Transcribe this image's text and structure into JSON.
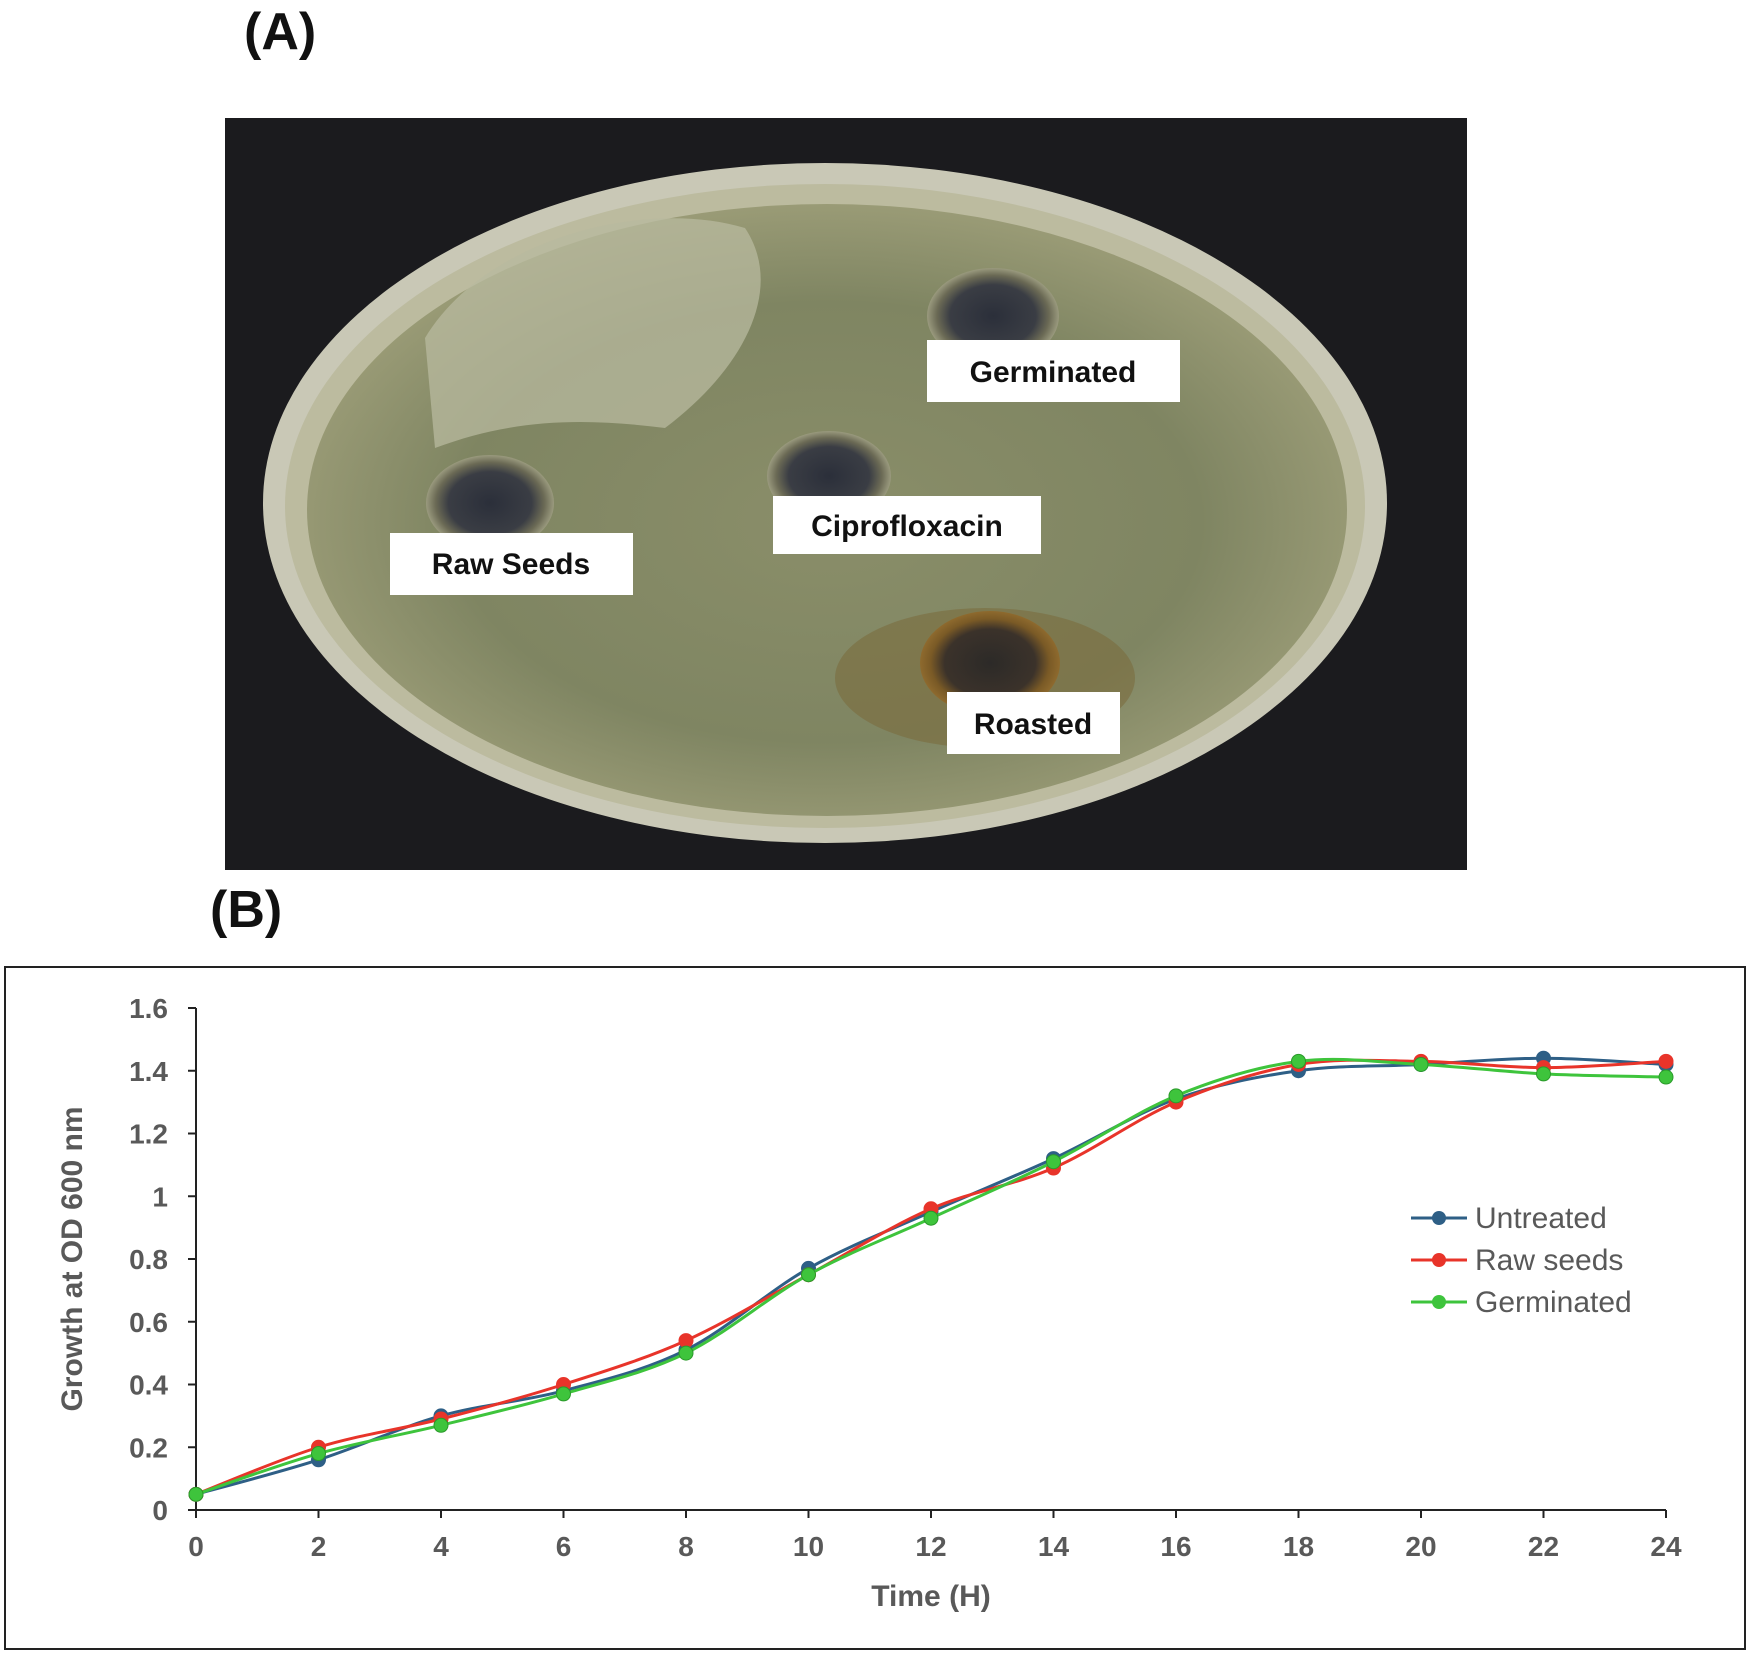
{
  "panels": {
    "a_label": "(A)",
    "b_label": "(B)"
  },
  "photo": {
    "labels": [
      {
        "text": "Germinated"
      },
      {
        "text": "Ciprofloxacin"
      },
      {
        "text": "Raw Seeds"
      },
      {
        "text": "Roasted"
      }
    ]
  },
  "chart_data": {
    "type": "line",
    "title": "",
    "xlabel": "Time (H)",
    "ylabel": "Growth at OD 600 nm",
    "x": [
      0,
      2,
      4,
      6,
      8,
      10,
      12,
      14,
      16,
      18,
      20,
      22,
      24
    ],
    "xlim": [
      0,
      24
    ],
    "ylim": [
      0,
      1.6
    ],
    "xticks": [
      "0",
      "2",
      "4",
      "6",
      "8",
      "10",
      "12",
      "14",
      "16",
      "18",
      "20",
      "22",
      "24"
    ],
    "yticks": [
      "0",
      "0.2",
      "0.4",
      "0.6",
      "0.8",
      "1",
      "1.2",
      "1.4",
      "1.6"
    ],
    "grid": false,
    "legend_position": "right",
    "series": [
      {
        "name": "Untreated",
        "color": "#2e5f86",
        "values": [
          0.05,
          0.16,
          0.3,
          0.38,
          0.51,
          0.77,
          0.95,
          1.12,
          1.31,
          1.4,
          1.42,
          1.44,
          1.42
        ]
      },
      {
        "name": "Raw seeds",
        "color": "#e8342a",
        "values": [
          0.05,
          0.2,
          0.29,
          0.4,
          0.54,
          0.75,
          0.96,
          1.09,
          1.3,
          1.42,
          1.43,
          1.41,
          1.43
        ]
      },
      {
        "name": "Germinated",
        "color": "#3ec43c",
        "values": [
          0.05,
          0.18,
          0.27,
          0.37,
          0.5,
          0.75,
          0.93,
          1.11,
          1.32,
          1.43,
          1.42,
          1.39,
          1.38
        ]
      }
    ]
  }
}
